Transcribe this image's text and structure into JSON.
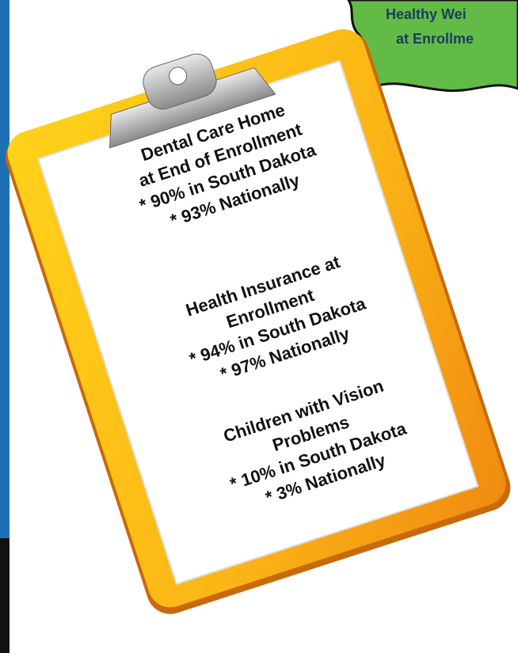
{
  "badge": {
    "lines": [
      "Healthy Wei",
      "at Enrollme"
    ]
  },
  "clipboard": {
    "sections": [
      {
        "lines": [
          "Dental Care Home",
          "at End of Enrollment",
          "* 90% in South Dakota",
          "* 93% Nationally"
        ]
      },
      {
        "lines": [
          "Health Insurance at",
          "Enrollment",
          "* 94% in South Dakota",
          "* 97% Nationally"
        ]
      },
      {
        "lines": [
          "Children with Vision",
          "Problems",
          "* 10% in South Dakota",
          "* 3% Nationally"
        ]
      }
    ]
  }
}
